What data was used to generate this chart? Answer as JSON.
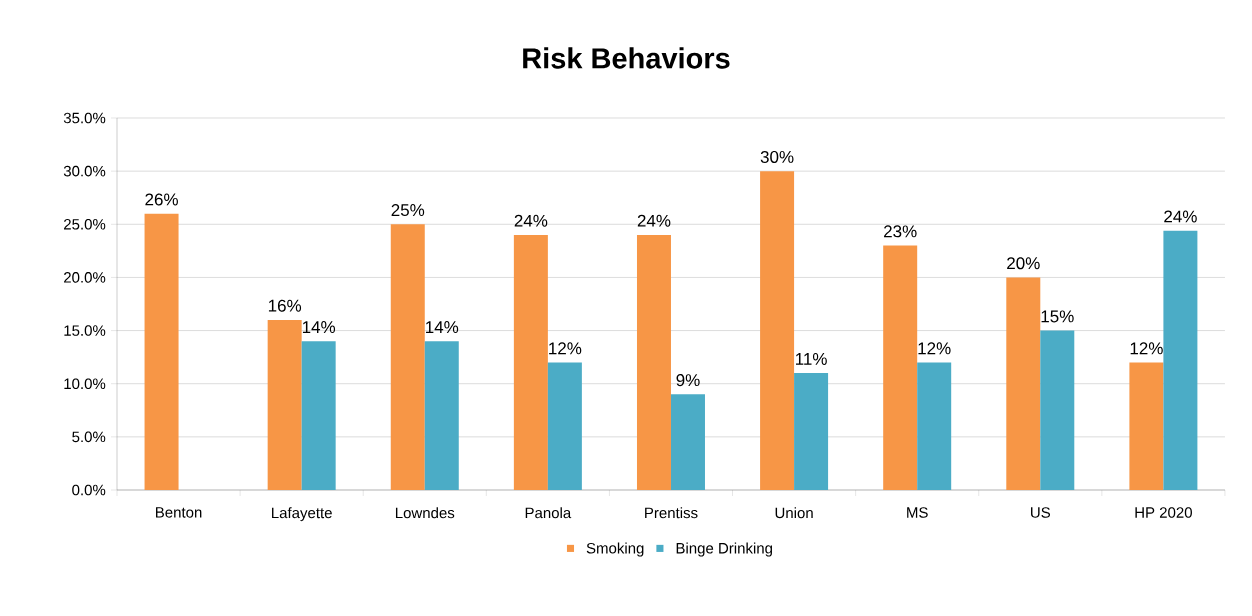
{
  "chart_data": {
    "type": "bar",
    "title": "Risk Behaviors",
    "categories": [
      "Benton",
      "Lafayette",
      "Lowndes",
      "Panola",
      "Prentiss",
      "Union",
      "MS",
      "US",
      "HP 2020"
    ],
    "series": [
      {
        "name": "Smoking",
        "color": "#f79646",
        "values": [
          26,
          16,
          25,
          24,
          24,
          30,
          23,
          20,
          12
        ],
        "value_labels": [
          "26%",
          "16%",
          "25%",
          "24%",
          "24%",
          "30%",
          "23%",
          "20%",
          "12%"
        ]
      },
      {
        "name": "Binge Drinking",
        "color": "#4bacc6",
        "values": [
          null,
          14,
          14,
          12,
          9,
          11,
          12,
          15,
          24.4
        ],
        "value_labels": [
          null,
          "14%",
          "14%",
          "12%",
          "9%",
          "11%",
          "12%",
          "15%",
          "24%"
        ]
      }
    ],
    "ylim": [
      0,
      35
    ],
    "yticks": [
      {
        "value": 0,
        "label": "0.0%"
      },
      {
        "value": 5,
        "label": "5.0%"
      },
      {
        "value": 10,
        "label": "10.0%"
      },
      {
        "value": 15,
        "label": "15.0%"
      },
      {
        "value": 20,
        "label": "20.0%"
      },
      {
        "value": 25,
        "label": "25.0%"
      },
      {
        "value": 30,
        "label": "30.0%"
      },
      {
        "value": 35,
        "label": "35.0%"
      }
    ],
    "grid": "y",
    "legend": "bottom"
  }
}
